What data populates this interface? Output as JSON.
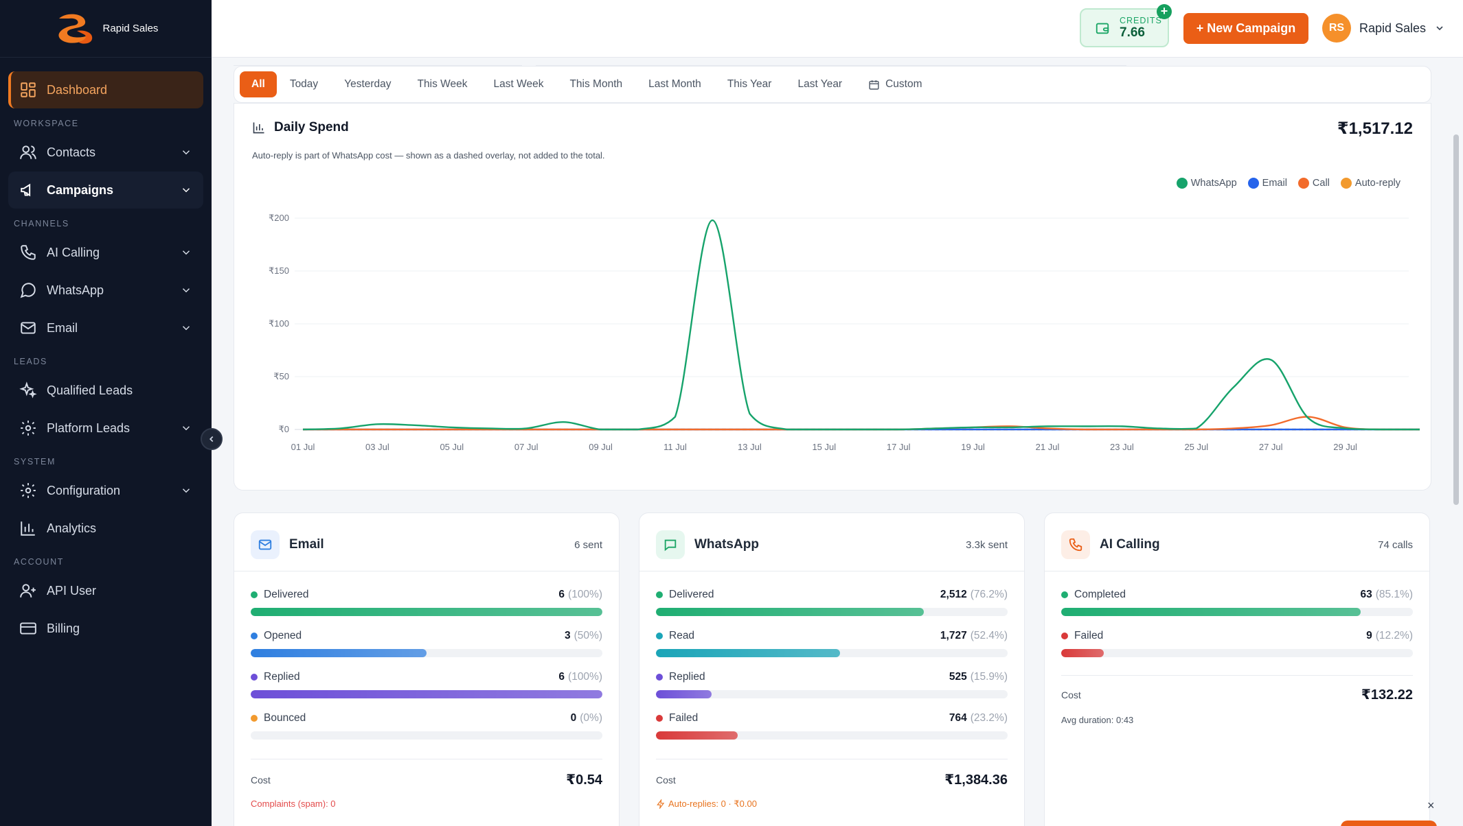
{
  "brand": {
    "name": "Rapid Sales"
  },
  "sidebar": {
    "items": [
      {
        "label": "Dashboard",
        "icon": "dashboard-icon",
        "active": true
      },
      {
        "section": "WORKSPACE"
      },
      {
        "label": "Contacts",
        "icon": "contacts-icon",
        "chevron": true
      },
      {
        "label": "Campaigns",
        "icon": "megaphone-icon",
        "chevron": true,
        "bold": true
      },
      {
        "section": "CHANNELS"
      },
      {
        "label": "AI Calling",
        "icon": "phone-icon",
        "chevron": true
      },
      {
        "label": "WhatsApp",
        "icon": "chat-bubble-icon",
        "chevron": true
      },
      {
        "label": "Email",
        "icon": "mail-icon",
        "chevron": true
      },
      {
        "section": "LEADS"
      },
      {
        "label": "Qualified Leads",
        "icon": "sparkles-icon"
      },
      {
        "label": "Platform Leads",
        "icon": "gear-icon",
        "chevron": true
      },
      {
        "section": "SYSTEM"
      },
      {
        "label": "Configuration",
        "icon": "gear-icon",
        "chevron": true
      },
      {
        "label": "Analytics",
        "icon": "bar-chart-icon"
      },
      {
        "section": "ACCOUNT"
      },
      {
        "label": "API User",
        "icon": "user-plus-icon"
      },
      {
        "label": "Billing",
        "icon": "card-icon"
      }
    ]
  },
  "topbar": {
    "credits_label": "CREDITS",
    "credits_value": "7.66",
    "new_campaign": "+ New Campaign",
    "avatar_initials": "RS",
    "user_name": "Rapid Sales"
  },
  "filters": [
    "All",
    "Today",
    "Yesterday",
    "This Week",
    "Last Week",
    "This Month",
    "Last Month",
    "This Year",
    "Last Year",
    "Custom"
  ],
  "active_filter": "All",
  "chart": {
    "title": "Daily Spend",
    "total": "₹1,517.12",
    "note": "Auto-reply is part of WhatsApp cost — shown as a dashed overlay, not added to the total."
  },
  "chart_data": {
    "type": "line",
    "x": [
      "01 Jul",
      "02 Jul",
      "03 Jul",
      "04 Jul",
      "05 Jul",
      "06 Jul",
      "07 Jul",
      "08 Jul",
      "09 Jul",
      "10 Jul",
      "11 Jul",
      "12 Jul",
      "13 Jul",
      "14 Jul",
      "15 Jul",
      "16 Jul",
      "17 Jul",
      "18 Jul",
      "19 Jul",
      "20 Jul",
      "21 Jul",
      "22 Jul",
      "23 Jul",
      "24 Jul",
      "25 Jul",
      "26 Jul",
      "27 Jul",
      "28 Jul",
      "29 Jul",
      "30 Jul",
      "31 Jul"
    ],
    "x_tick_labels": [
      "01 Jul",
      "03 Jul",
      "05 Jul",
      "07 Jul",
      "09 Jul",
      "11 Jul",
      "13 Jul",
      "15 Jul",
      "17 Jul",
      "19 Jul",
      "21 Jul",
      "23 Jul",
      "25 Jul",
      "27 Jul",
      "29 Jul"
    ],
    "y_ticks": [
      "₹0",
      "₹50",
      "₹100",
      "₹150",
      "₹200"
    ],
    "ylim": [
      0,
      200
    ],
    "grid": true,
    "legend": "top-right",
    "series": [
      {
        "name": "WhatsApp",
        "color": "#16a36b",
        "values": [
          0,
          1,
          5,
          4,
          2,
          1,
          1,
          7,
          0,
          0,
          12,
          198,
          15,
          0,
          0,
          0,
          0,
          1,
          2,
          2,
          3,
          3,
          3,
          1,
          1,
          40,
          66,
          11,
          1,
          0,
          0
        ]
      },
      {
        "name": "Email",
        "color": "#2563eb",
        "values": [
          0,
          0,
          0,
          0,
          0,
          0,
          0,
          0,
          0,
          0,
          0,
          0,
          0,
          0,
          0,
          0,
          0,
          0,
          0,
          0,
          0,
          0,
          0,
          0,
          0,
          0,
          0,
          0,
          0,
          0,
          0
        ]
      },
      {
        "name": "Call",
        "color": "#f26b2b",
        "values": [
          0,
          0,
          0,
          0,
          0,
          0,
          0,
          0,
          0,
          0,
          0,
          0,
          0,
          0,
          0,
          0,
          0,
          1,
          2,
          3,
          1,
          0,
          0,
          0,
          0,
          1,
          4,
          12,
          2,
          0,
          0
        ]
      },
      {
        "name": "Auto-reply",
        "color": "#f29a2e",
        "values": [
          0,
          0,
          0,
          0,
          0,
          0,
          0,
          0,
          0,
          0,
          0,
          0,
          0,
          0,
          0,
          0,
          0,
          0,
          0,
          0,
          0,
          0,
          0,
          0,
          0,
          0,
          0,
          0,
          0,
          0,
          0
        ]
      }
    ]
  },
  "cards": {
    "email": {
      "name": "Email",
      "count": "6 sent",
      "metrics": [
        {
          "label": "Delivered",
          "value": "6",
          "pct": "(100%)",
          "fill": 1.0,
          "color": "#1fae72"
        },
        {
          "label": "Opened",
          "value": "3",
          "pct": "(50%)",
          "fill": 0.5,
          "color": "#2f7fe0"
        },
        {
          "label": "Replied",
          "value": "6",
          "pct": "(100%)",
          "fill": 1.0,
          "color": "#6d4fd8"
        },
        {
          "label": "Bounced",
          "value": "0",
          "pct": "(0%)",
          "fill": 0.0,
          "color": "#f29a2e"
        }
      ],
      "cost_label": "Cost",
      "cost": "₹0.54",
      "footnote": "Complaints (spam): 0"
    },
    "whatsapp": {
      "name": "WhatsApp",
      "count": "3.3k sent",
      "metrics": [
        {
          "label": "Delivered",
          "value": "2,512",
          "pct": "(76.2%)",
          "fill": 0.762,
          "color": "#1fae72"
        },
        {
          "label": "Read",
          "value": "1,727",
          "pct": "(52.4%)",
          "fill": 0.524,
          "color": "#1ba5b8"
        },
        {
          "label": "Replied",
          "value": "525",
          "pct": "(15.9%)",
          "fill": 0.159,
          "color": "#6d4fd8"
        },
        {
          "label": "Failed",
          "value": "764",
          "pct": "(23.2%)",
          "fill": 0.232,
          "color": "#d93a3a"
        }
      ],
      "cost_label": "Cost",
      "cost": "₹1,384.36",
      "footnote": "Auto-replies: 0 · ₹0.00"
    },
    "calling": {
      "name": "AI Calling",
      "count": "74 calls",
      "metrics": [
        {
          "label": "Completed",
          "value": "63",
          "pct": "(85.1%)",
          "fill": 0.851,
          "color": "#1fae72"
        },
        {
          "label": "Failed",
          "value": "9",
          "pct": "(12.2%)",
          "fill": 0.122,
          "color": "#d93a3a"
        }
      ],
      "cost_label": "Cost",
      "cost": "₹132.22",
      "footnote": "Avg duration: 0:43"
    }
  },
  "close_glyph": "×"
}
